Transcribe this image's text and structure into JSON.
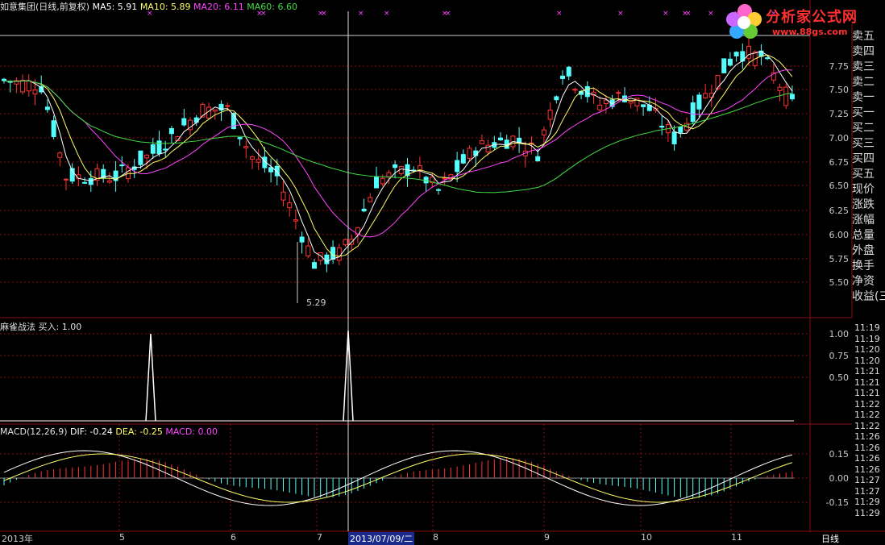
{
  "header": {
    "main": "如意集团(日线,前复权)",
    "ma5": "MA5: 5.91",
    "ma10": "MA10: 5.89",
    "ma20": "MA20: 6.11",
    "ma60": "MA60: 6.60",
    "indicator": "麻雀战法",
    "buy_value": "买入: 1.00",
    "macd": "MACD(12,26,9)",
    "dif": "DIF: -0.24",
    "dea": "DEA: -0.25",
    "macd_value": "MACD: 0.00"
  },
  "price_axis": [
    "7.75",
    "7.50",
    "7.25",
    "7.00",
    "6.75",
    "6.50",
    "6.25",
    "6.00",
    "5.75",
    "5.50"
  ],
  "indicator_axis": [
    "1.00",
    "0.75",
    "0.50"
  ],
  "macd_axis": [
    "0.15",
    "0.00",
    "-0.15"
  ],
  "low_marker": "5.29",
  "dates": [
    "2013年",
    "5",
    "6",
    "7",
    "2013/07/09/二",
    "8",
    "9",
    "10",
    "11"
  ],
  "period_label": "日线",
  "side_panel": [
    "卖五",
    "卖四",
    "卖三",
    "卖二",
    "卖一",
    "买一",
    "买二",
    "买三",
    "买四",
    "买五",
    "现价",
    "涨跌",
    "涨幅",
    "总量",
    "外盘",
    "换手",
    "净资",
    "收益(三"
  ],
  "times": [
    "11:19",
    "11:19",
    "11:20",
    "11:20",
    "11:21",
    "11:21",
    "11:21",
    "11:22",
    "11:22",
    "11:22",
    "11:26",
    "11:26",
    "11:26",
    "11:26",
    "11:27",
    "11:27",
    "11:29",
    "11:29"
  ],
  "logo": {
    "title": "分析家公式网",
    "url": "www.88gs.com"
  },
  "colors": {
    "up": "#ff3333",
    "down": "#54ffff",
    "ma5": "#ffffff",
    "ma10": "#ffff66",
    "ma20": "#ff44ff",
    "ma60": "#44dd44",
    "grid": "#8a1010"
  }
}
